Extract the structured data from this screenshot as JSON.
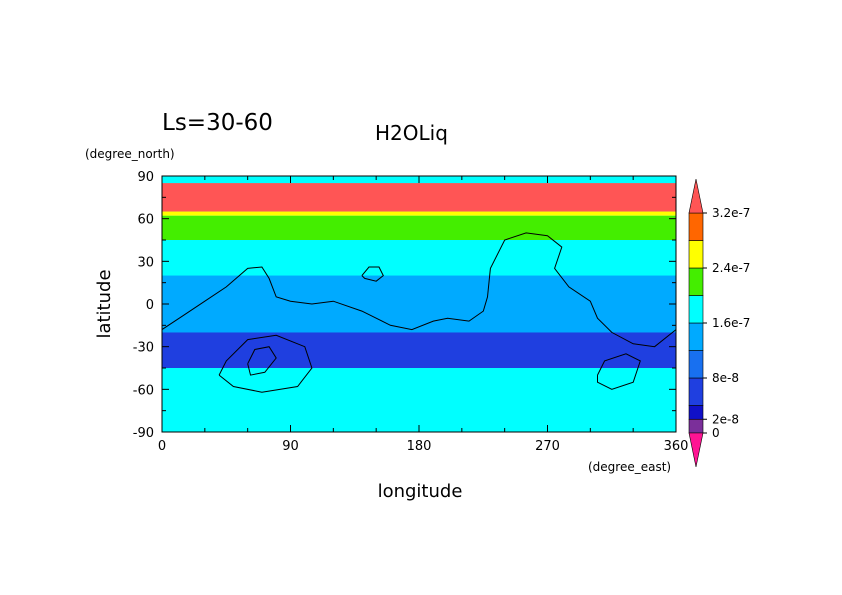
{
  "chart_data": {
    "type": "heatmap",
    "title": "H2OLiq",
    "subtitle": "Ls=30-60",
    "xlabel": "longitude",
    "ylabel": "latitude",
    "xunit": "(degree_east)",
    "yunit": "(degree_north)",
    "xlim": [
      0,
      360
    ],
    "ylim": [
      -90,
      90
    ],
    "xticks": [
      0,
      90,
      180,
      270,
      360
    ],
    "yticks": [
      -90,
      -60,
      -30,
      0,
      30,
      60,
      90
    ],
    "grid": false,
    "legend": "right",
    "colorbar": {
      "levels": [
        0,
        2e-08,
        4e-08,
        8e-08,
        1.2e-07,
        1.6e-07,
        2e-07,
        2.4e-07,
        2.8e-07,
        3.2e-07
      ],
      "labels": [
        "0",
        "2e-8",
        "8e-8",
        "1.6e-7",
        "2.4e-7",
        "3.2e-7"
      ],
      "label_values": [
        0,
        2e-08,
        8e-08,
        1.6e-07,
        2.4e-07,
        3.2e-07
      ],
      "colors": [
        "#7b2f9a",
        "#1010c8",
        "#1f3fe0",
        "#1870f0",
        "#00aaff",
        "#00ffff",
        "#44ee00",
        "#ffff00",
        "#ff6600",
        "#ff5555"
      ],
      "under_color": "#ff1493",
      "over_color": "#ff5555"
    },
    "bands": [
      {
        "lat_range": [
          65,
          85
        ],
        "color": "#ff5555",
        "level": "above 3.2e-7"
      },
      {
        "lat_range": [
          62,
          65
        ],
        "color": "#ffff00",
        "level": "2.4e-7 to 2.8e-7"
      },
      {
        "lat_range": [
          40,
          62
        ],
        "color": "#44ee00",
        "level": "2e-7 to 2.4e-7"
      },
      {
        "lat_range": [
          20,
          45
        ],
        "color": "#00ffff",
        "level": "1.6e-7 to 2e-7"
      },
      {
        "lat_range": [
          -20,
          20
        ],
        "color": "#00aaff",
        "level": "1.2e-7 to 1.6e-7"
      },
      {
        "lat_range": [
          -45,
          -20
        ],
        "color": "#1f3fe0",
        "level": "4e-8 to 8e-8"
      },
      {
        "lat_range": [
          -90,
          -55
        ],
        "color": "#00ffff",
        "level": "1.6e-7 to 2e-7"
      }
    ],
    "contours": [
      {
        "name": "",
        "points": [
          [
            0,
            -18
          ],
          [
            15,
            -8
          ],
          [
            30,
            2
          ],
          [
            45,
            12
          ],
          [
            60,
            25
          ],
          [
            70,
            26
          ],
          [
            75,
            18
          ],
          [
            80,
            5
          ],
          [
            90,
            2
          ],
          [
            105,
            0
          ],
          [
            120,
            2
          ],
          [
            140,
            -5
          ],
          [
            160,
            -15
          ],
          [
            175,
            -18
          ],
          [
            190,
            -12
          ],
          [
            200,
            -10
          ],
          [
            215,
            -12
          ],
          [
            225,
            -5
          ],
          [
            228,
            5
          ],
          [
            230,
            25
          ],
          [
            240,
            45
          ],
          [
            255,
            50
          ],
          [
            270,
            48
          ],
          [
            280,
            40
          ],
          [
            275,
            25
          ],
          [
            285,
            12
          ],
          [
            300,
            2
          ],
          [
            305,
            -10
          ],
          [
            315,
            -20
          ],
          [
            330,
            -28
          ],
          [
            345,
            -30
          ],
          [
            360,
            -18
          ]
        ]
      },
      {
        "name": "",
        "points": [
          [
            140,
            20
          ],
          [
            145,
            26
          ],
          [
            152,
            26
          ],
          [
            155,
            20
          ],
          [
            150,
            16
          ],
          [
            142,
            18
          ],
          [
            140,
            20
          ]
        ]
      },
      {
        "name": "",
        "points": [
          [
            40,
            -50
          ],
          [
            45,
            -40
          ],
          [
            60,
            -25
          ],
          [
            80,
            -22
          ],
          [
            100,
            -30
          ],
          [
            105,
            -45
          ],
          [
            95,
            -58
          ],
          [
            70,
            -62
          ],
          [
            50,
            -58
          ],
          [
            40,
            -50
          ]
        ]
      },
      {
        "name": "",
        "points": [
          [
            60,
            -42
          ],
          [
            65,
            -32
          ],
          [
            75,
            -30
          ],
          [
            80,
            -38
          ],
          [
            72,
            -48
          ],
          [
            62,
            -50
          ],
          [
            60,
            -42
          ]
        ]
      },
      {
        "name": "",
        "points": [
          [
            305,
            -50
          ],
          [
            310,
            -40
          ],
          [
            325,
            -35
          ],
          [
            335,
            -40
          ],
          [
            330,
            -55
          ],
          [
            315,
            -60
          ],
          [
            305,
            -55
          ],
          [
            305,
            -50
          ]
        ]
      }
    ]
  }
}
